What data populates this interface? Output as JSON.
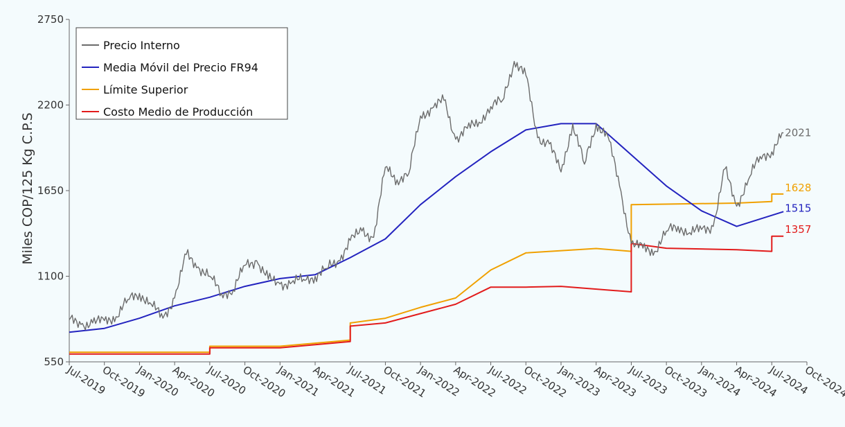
{
  "chart_data": {
    "type": "line",
    "title": "",
    "ylabel": "Miles COP/125 Kg C.P.S",
    "xlabel": "",
    "ylim": [
      550,
      2750
    ],
    "yticks": [
      550,
      1100,
      1650,
      2200,
      2750
    ],
    "x_range": [
      "2019-07",
      "2024-10"
    ],
    "xticks": [
      "Jul-2019",
      "Oct-2019",
      "Jan-2020",
      "Apr-2020",
      "Jul-2020",
      "Oct-2020",
      "Jan-2021",
      "Apr-2021",
      "Jul-2021",
      "Oct-2021",
      "Jan-2022",
      "Apr-2022",
      "Jul-2022",
      "Oct-2022",
      "Jan-2023",
      "Apr-2023",
      "Jul-2023",
      "Oct-2023",
      "Jan-2024",
      "Apr-2024",
      "Jul-2024",
      "Oct-2024"
    ],
    "grid": false,
    "legend_position": "top-left",
    "series": [
      {
        "name": "Precio Interno",
        "color": "#6b6b6b",
        "end_label": "2021",
        "points": [
          [
            "2019-07",
            820
          ],
          [
            "2019-08",
            790
          ],
          [
            "2019-09",
            800
          ],
          [
            "2019-10",
            815
          ],
          [
            "2019-11",
            840
          ],
          [
            "2019-12",
            950
          ],
          [
            "2020-01",
            990
          ],
          [
            "2020-02",
            920
          ],
          [
            "2020-03",
            830
          ],
          [
            "2020-04",
            960
          ],
          [
            "2020-05",
            1240
          ],
          [
            "2020-06",
            1160
          ],
          [
            "2020-07",
            1100
          ],
          [
            "2020-08",
            990
          ],
          [
            "2020-09",
            1010
          ],
          [
            "2020-10",
            1170
          ],
          [
            "2020-11",
            1200
          ],
          [
            "2020-12",
            1080
          ],
          [
            "2021-01",
            1050
          ],
          [
            "2021-02",
            1060
          ],
          [
            "2021-03",
            1080
          ],
          [
            "2021-04",
            1100
          ],
          [
            "2021-05",
            1150
          ],
          [
            "2021-06",
            1200
          ],
          [
            "2021-07",
            1330
          ],
          [
            "2021-08",
            1390
          ],
          [
            "2021-09",
            1350
          ],
          [
            "2021-10",
            1800
          ],
          [
            "2021-11",
            1720
          ],
          [
            "2021-12",
            1760
          ],
          [
            "2022-01",
            2130
          ],
          [
            "2022-02",
            2180
          ],
          [
            "2022-03",
            2230
          ],
          [
            "2022-04",
            1980
          ],
          [
            "2022-05",
            2050
          ],
          [
            "2022-06",
            2090
          ],
          [
            "2022-07",
            2190
          ],
          [
            "2022-08",
            2230
          ],
          [
            "2022-09",
            2480
          ],
          [
            "2022-10",
            2390
          ],
          [
            "2022-11",
            1990
          ],
          [
            "2022-12",
            1950
          ],
          [
            "2023-01",
            1770
          ],
          [
            "2023-02",
            2080
          ],
          [
            "2023-03",
            1820
          ],
          [
            "2023-04",
            2080
          ],
          [
            "2023-05",
            2000
          ],
          [
            "2023-06",
            1680
          ],
          [
            "2023-07",
            1310
          ],
          [
            "2023-08",
            1280
          ],
          [
            "2023-09",
            1260
          ],
          [
            "2023-10",
            1390
          ],
          [
            "2023-11",
            1420
          ],
          [
            "2023-12",
            1380
          ],
          [
            "2024-01",
            1400
          ],
          [
            "2024-02",
            1420
          ],
          [
            "2024-03",
            1790
          ],
          [
            "2024-04",
            1550
          ],
          [
            "2024-05",
            1720
          ],
          [
            "2024-06",
            1870
          ],
          [
            "2024-07",
            1900
          ],
          [
            "2024-08",
            2021
          ]
        ]
      },
      {
        "name": "Media Móvil del Precio FR94",
        "color": "#2323bf",
        "end_label": "1515",
        "points": [
          [
            "2019-07",
            740
          ],
          [
            "2019-10",
            765
          ],
          [
            "2020-01",
            830
          ],
          [
            "2020-04",
            910
          ],
          [
            "2020-07",
            965
          ],
          [
            "2020-10",
            1035
          ],
          [
            "2021-01",
            1085
          ],
          [
            "2021-04",
            1110
          ],
          [
            "2021-07",
            1220
          ],
          [
            "2021-10",
            1340
          ],
          [
            "2022-01",
            1560
          ],
          [
            "2022-04",
            1740
          ],
          [
            "2022-07",
            1900
          ],
          [
            "2022-10",
            2040
          ],
          [
            "2023-01",
            2080
          ],
          [
            "2023-04",
            2080
          ],
          [
            "2023-07",
            1880
          ],
          [
            "2023-10",
            1680
          ],
          [
            "2024-01",
            1520
          ],
          [
            "2024-04",
            1420
          ],
          [
            "2024-08",
            1515
          ]
        ]
      },
      {
        "name": "Límite Superior",
        "color": "#f0a000",
        "end_label": "1628",
        "points": [
          [
            "2019-07",
            612
          ],
          [
            "2020-07",
            612
          ],
          [
            "2020-07",
            650
          ],
          [
            "2021-01",
            650
          ],
          [
            "2021-07",
            690
          ],
          [
            "2021-07",
            800
          ],
          [
            "2021-10",
            830
          ],
          [
            "2022-01",
            900
          ],
          [
            "2022-04",
            960
          ],
          [
            "2022-07",
            1140
          ],
          [
            "2022-10",
            1250
          ],
          [
            "2023-04",
            1278
          ],
          [
            "2023-07",
            1260
          ],
          [
            "2023-07",
            1560
          ],
          [
            "2024-04",
            1570
          ],
          [
            "2024-07",
            1580
          ],
          [
            "2024-07",
            1628
          ],
          [
            "2024-08",
            1628
          ]
        ]
      },
      {
        "name": "Costo Medio de Producción",
        "color": "#e21b1b",
        "end_label": "1357",
        "points": [
          [
            "2019-07",
            600
          ],
          [
            "2020-07",
            600
          ],
          [
            "2020-07",
            640
          ],
          [
            "2021-01",
            640
          ],
          [
            "2021-07",
            680
          ],
          [
            "2021-07",
            780
          ],
          [
            "2021-10",
            800
          ],
          [
            "2022-01",
            860
          ],
          [
            "2022-04",
            920
          ],
          [
            "2022-07",
            1030
          ],
          [
            "2022-10",
            1030
          ],
          [
            "2023-01",
            1035
          ],
          [
            "2023-07",
            1000
          ],
          [
            "2023-07",
            1310
          ],
          [
            "2023-10",
            1280
          ],
          [
            "2024-04",
            1270
          ],
          [
            "2024-07",
            1260
          ],
          [
            "2024-07",
            1357
          ],
          [
            "2024-08",
            1357
          ]
        ]
      }
    ]
  }
}
